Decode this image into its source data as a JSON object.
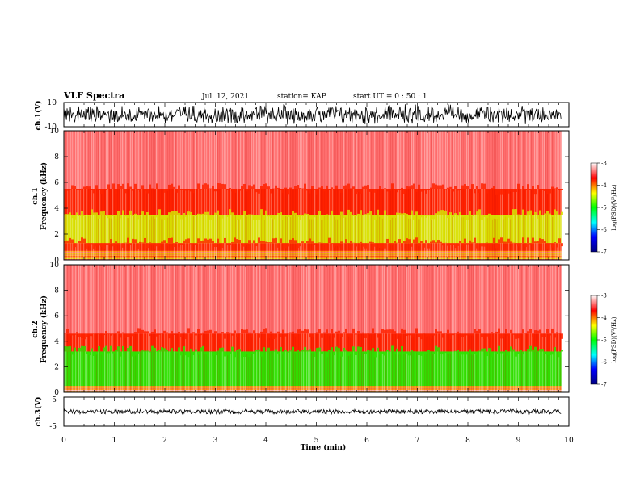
{
  "header": {
    "title": "VLF Spectra",
    "date": "Jul. 12, 2021",
    "station": "station= KAP",
    "start": "start UT =  0 : 50 : 1"
  },
  "chart_data": [
    {
      "type": "line",
      "panel": "ch1-waveform",
      "ylabel": "ch.1(V)",
      "ylim": [
        -10,
        10
      ],
      "y_ticks": [
        "10",
        "-10"
      ],
      "xlim": [
        0,
        10
      ],
      "x_end": 9.85,
      "color": "#000000"
    },
    {
      "type": "heatmap",
      "panel": "ch1-spectrogram",
      "ylabel": "ch.1\nFrequency (kHz)",
      "ylim": [
        0,
        10
      ],
      "y_ticks": [
        "10",
        "8",
        "6",
        "4",
        "2",
        "0"
      ],
      "xlim": [
        0,
        10
      ],
      "x_end": 9.85,
      "bands_khz": [
        {
          "from": 0,
          "to": 0.7,
          "color": "mixed"
        },
        {
          "from": 0.7,
          "to": 1.3,
          "color": "#ff2a00"
        },
        {
          "from": 1.3,
          "to": 3.5,
          "color": "#d8e000"
        },
        {
          "from": 3.5,
          "to": 5.5,
          "color": "#ff2200"
        },
        {
          "from": 5.5,
          "to": 10,
          "color": "#ff7070"
        }
      ],
      "colorbar": {
        "label": "log(PSD)(V²/Hz)",
        "range": [
          -7,
          -3
        ],
        "ticks": [
          "-3",
          "-4",
          "-5",
          "-6",
          "-7"
        ],
        "colors": [
          "#000080",
          "#0000ff",
          "#00ffff",
          "#00ff00",
          "#ffff00",
          "#ff0000",
          "#ffffff"
        ]
      }
    },
    {
      "type": "heatmap",
      "panel": "ch2-spectrogram",
      "ylabel": "ch.2\nFrequency (kHz)",
      "ylim": [
        0,
        10
      ],
      "y_ticks": [
        "10",
        "8",
        "6",
        "4",
        "2",
        "0"
      ],
      "xlim": [
        0,
        10
      ],
      "x_end": 9.85,
      "bands_khz": [
        {
          "from": 0,
          "to": 0.5,
          "color": "mixed"
        },
        {
          "from": 0.5,
          "to": 3.2,
          "color": "#2fe000"
        },
        {
          "from": 3.2,
          "to": 4.6,
          "color": "#ff2200"
        },
        {
          "from": 4.6,
          "to": 10,
          "color": "#ff7070"
        }
      ],
      "colorbar": {
        "label": "log(PSD)(V²/Hz)",
        "range": [
          -7,
          -3
        ],
        "ticks": [
          "-3",
          "-4",
          "-5",
          "-6",
          "-7"
        ],
        "colors": [
          "#000080",
          "#0000ff",
          "#00ffff",
          "#00ff00",
          "#ffff00",
          "#ff0000",
          "#ffffff"
        ]
      }
    },
    {
      "type": "line",
      "panel": "ch3-waveform",
      "ylabel": "ch.3(V)",
      "ylim": [
        -5,
        5
      ],
      "y_ticks": [
        "5",
        "-5"
      ],
      "xlim": [
        0,
        10
      ],
      "x_end": 9.85,
      "color": "#000000"
    }
  ],
  "x_axis": {
    "label": "Time (min)",
    "ticks": [
      "0",
      "1",
      "2",
      "3",
      "4",
      "5",
      "6",
      "7",
      "8",
      "9",
      "10"
    ]
  }
}
